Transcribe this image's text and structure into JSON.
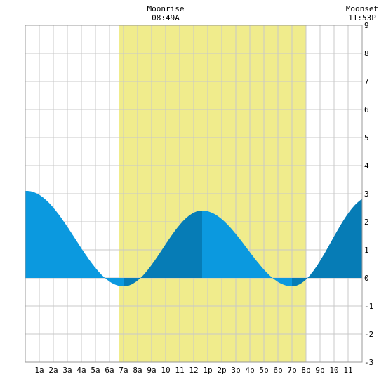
{
  "chart_data": {
    "type": "area",
    "title": "",
    "xlabel": "",
    "ylabel": "",
    "xlim": [
      0,
      24
    ],
    "ylim": [
      -3,
      9
    ],
    "grid": true,
    "x_ticks": [
      {
        "x": 1,
        "label": "1a"
      },
      {
        "x": 2,
        "label": "2a"
      },
      {
        "x": 3,
        "label": "3a"
      },
      {
        "x": 4,
        "label": "4a"
      },
      {
        "x": 5,
        "label": "5a"
      },
      {
        "x": 6,
        "label": "6a"
      },
      {
        "x": 7,
        "label": "7a"
      },
      {
        "x": 8,
        "label": "8a"
      },
      {
        "x": 9,
        "label": "9a"
      },
      {
        "x": 10,
        "label": "10"
      },
      {
        "x": 11,
        "label": "11"
      },
      {
        "x": 12,
        "label": "12"
      },
      {
        "x": 13,
        "label": "1p"
      },
      {
        "x": 14,
        "label": "2p"
      },
      {
        "x": 15,
        "label": "3p"
      },
      {
        "x": 16,
        "label": "4p"
      },
      {
        "x": 17,
        "label": "5p"
      },
      {
        "x": 18,
        "label": "6p"
      },
      {
        "x": 19,
        "label": "7p"
      },
      {
        "x": 20,
        "label": "8p"
      },
      {
        "x": 21,
        "label": "9p"
      },
      {
        "x": 22,
        "label": "10"
      },
      {
        "x": 23,
        "label": "11"
      }
    ],
    "y_ticks": [
      9,
      8,
      7,
      6,
      5,
      4,
      3,
      2,
      1,
      0,
      -1,
      -2,
      -3
    ],
    "tide_extremes": [
      {
        "x": 0.1,
        "y": 3.1
      },
      {
        "x": 7.0,
        "y": -0.3
      },
      {
        "x": 12.6,
        "y": 2.4
      },
      {
        "x": 19.0,
        "y": -0.3
      },
      {
        "x": 24.6,
        "y": 2.9
      }
    ],
    "daylight_band": {
      "start": 6.7,
      "end": 20.0
    },
    "annotations": [
      {
        "x": 10.0,
        "line1": "Moonrise",
        "line2": "08:49A"
      },
      {
        "x": 24.0,
        "line1": "Moonset",
        "line2": "11:53P"
      }
    ],
    "colors": {
      "daylight": "#f0ec8c",
      "tide_light": "#0b99df",
      "tide_dark": "#067cb6",
      "grid": "#c8c8c8",
      "frame": "#999999"
    }
  }
}
